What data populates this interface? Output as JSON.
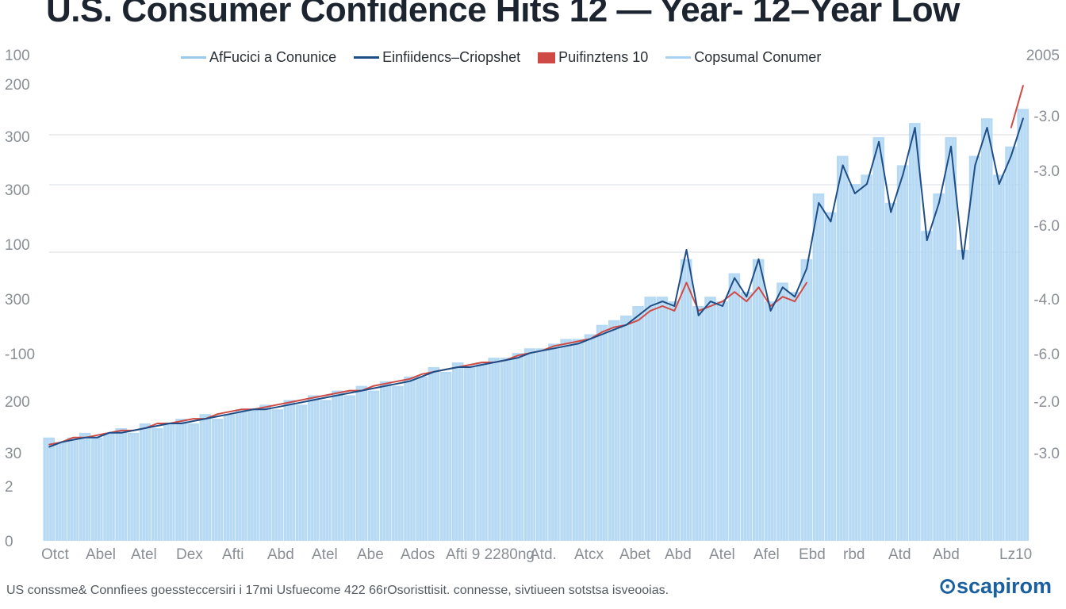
{
  "chart_data": {
    "type": "bar",
    "title": "U.S. Consumer Confidence Hits 12 — Year- 12–Year Low",
    "legend": [
      {
        "label": "AfFucici a Conunice",
        "color": "#9cc8ea",
        "kind": "line"
      },
      {
        "label": "Einfiidencs–Criopshet",
        "color": "#1f4e86",
        "kind": "line"
      },
      {
        "label": "Puifinztens 10",
        "color": "#d04a45",
        "kind": "box"
      },
      {
        "label": "Copsumal Conumer",
        "color": "#a9d2f2",
        "kind": "line"
      }
    ],
    "legend_position": "top",
    "left_axis_labels": [
      "100",
      "200",
      "300",
      "300",
      "100",
      "300",
      "-100",
      "200",
      "30",
      "2",
      "0"
    ],
    "right_axis_labels": [
      "2005",
      "-3.0",
      "-3.0",
      "-6.0",
      "-4.0",
      "-6.0",
      "-2.0",
      "-3.0"
    ],
    "x_tick_labels": [
      "Otct",
      "Abel",
      "Atel",
      "Dex",
      "Afti",
      "Abd",
      "Atel",
      "Abe",
      "Ados",
      "Afti 9 2280ng",
      "Atd.",
      "Atcx",
      "Abet",
      "Abd",
      "Atel",
      "Afel",
      "Ebd",
      "rbd",
      "Atd",
      "Abd",
      "Lz10"
    ],
    "ylim": [
      0,
      100
    ],
    "grid": true,
    "series": [
      {
        "name": "Einfiidencs–Criopshet",
        "color": "#1f4e86",
        "values": [
          20,
          21,
          21.5,
          22,
          22,
          23,
          23,
          23.5,
          24,
          24.5,
          25,
          25,
          25.5,
          26,
          26.5,
          27,
          27.5,
          28,
          28,
          28.5,
          29,
          29.5,
          30,
          30.5,
          31,
          31.5,
          32,
          32.5,
          33,
          33.5,
          34,
          35,
          36,
          36.5,
          37,
          37,
          37.5,
          38,
          38.5,
          39,
          40,
          40.5,
          41,
          41.5,
          42,
          43,
          44,
          45,
          46,
          48,
          50,
          51,
          50,
          62,
          48,
          51,
          50,
          56,
          52,
          60,
          49,
          54,
          52,
          58,
          72,
          68,
          80,
          74,
          76,
          85,
          70,
          78,
          88,
          64,
          72,
          84,
          60,
          80,
          88,
          76,
          82,
          90
        ]
      },
      {
        "name": "Puifinztens 10",
        "color": "#d04a45",
        "values": [
          20.5,
          21,
          22,
          22,
          22.5,
          23,
          23.5,
          23.5,
          24,
          25,
          25,
          25.5,
          26,
          26,
          27,
          27.5,
          28,
          28,
          28.5,
          29,
          29.5,
          30,
          30.5,
          31,
          31.5,
          32,
          32,
          33,
          33.5,
          34,
          34.5,
          35.5,
          36,
          36.5,
          37,
          37.5,
          38,
          38,
          38.5,
          39.5,
          40,
          40.5,
          41.5,
          42,
          42.5,
          43,
          44.5,
          45.5,
          46,
          47,
          49,
          50,
          49,
          55,
          49,
          50,
          51,
          53,
          51,
          54,
          50,
          52,
          51,
          55,
          null,
          null,
          null,
          null,
          null,
          null,
          null,
          null,
          null,
          null,
          null,
          null,
          null,
          null,
          null,
          null,
          88,
          97
        ]
      },
      {
        "name": "Copsumal Conumer",
        "color": "#a9d2f2",
        "values": [
          22,
          21,
          22,
          23,
          22,
          23,
          24,
          23,
          25,
          24,
          25,
          26,
          25,
          27,
          26,
          27,
          28,
          28,
          29,
          28,
          30,
          29,
          31,
          30,
          32,
          31,
          33,
          32,
          34,
          33,
          35,
          35,
          37,
          36,
          38,
          37,
          38,
          39,
          39,
          40,
          41,
          41,
          42,
          43,
          43,
          44,
          46,
          47,
          48,
          50,
          52,
          52,
          51,
          60,
          50,
          52,
          51,
          57,
          53,
          60,
          51,
          55,
          53,
          60,
          74,
          70,
          82,
          76,
          78,
          86,
          72,
          80,
          89,
          66,
          74,
          86,
          62,
          82,
          90,
          78,
          84,
          92
        ]
      }
    ]
  },
  "footer": "US conssme& Connfiees goessteccersiri i 17mi Usfuecome 422 66rOsoristtisit. connesse, sivtiueen sotstsa isveooias.",
  "logo": "scapirom"
}
